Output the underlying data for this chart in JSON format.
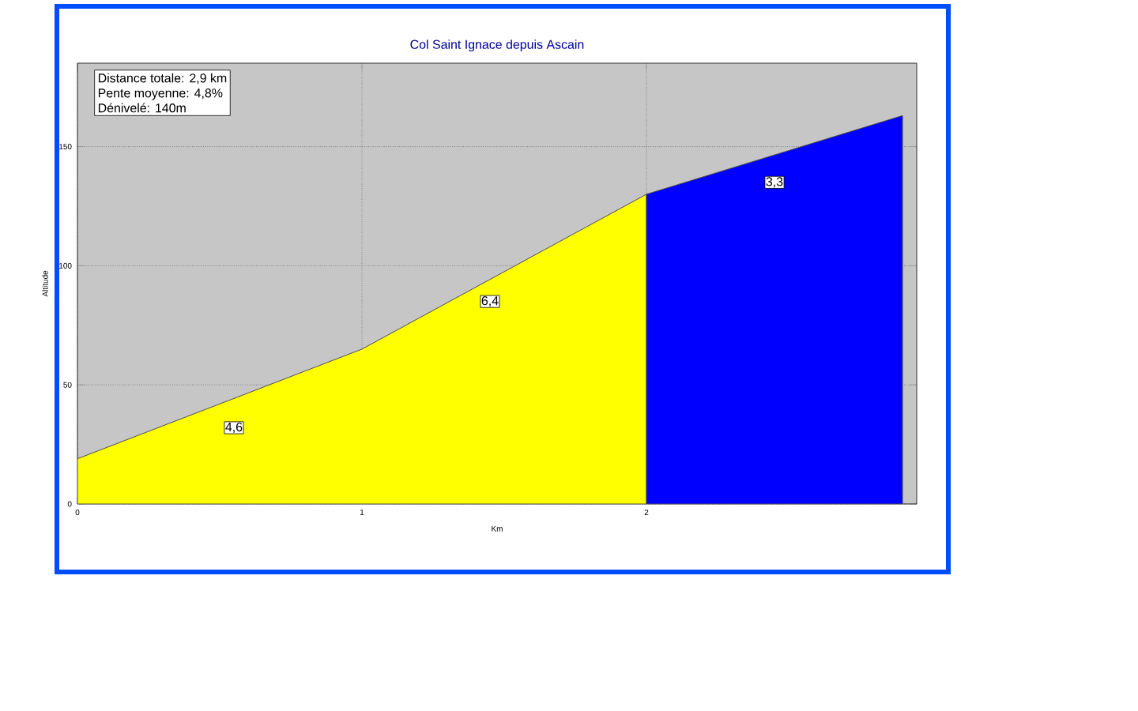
{
  "chart_data": {
    "type": "area",
    "title": "Col Saint Ignace depuis Ascain",
    "xlabel": "Km",
    "ylabel": "Altitude",
    "xlim": [
      0,
      2.95
    ],
    "ylim": [
      0,
      185
    ],
    "xticks": [
      0,
      1,
      2
    ],
    "yticks": [
      0,
      50,
      100,
      150
    ],
    "grid": true,
    "series": [
      {
        "x": [
          0,
          1,
          2
        ],
        "values": [
          19,
          65,
          130
        ],
        "color": "#ffff00"
      },
      {
        "x": [
          2,
          2.9
        ],
        "values": [
          130,
          163
        ],
        "color": "#0000ff"
      }
    ],
    "annotations": [
      "Distance totale: 2,9 km",
      "Pente moyenne: 4,8%",
      "Dénivelé: 140m",
      {
        "text": "4,6",
        "x": 0.55,
        "y": 32
      },
      {
        "text": "6,4",
        "x": 1.45,
        "y": 85
      },
      {
        "text": "3,3",
        "x": 2.45,
        "y": 135
      }
    ]
  }
}
